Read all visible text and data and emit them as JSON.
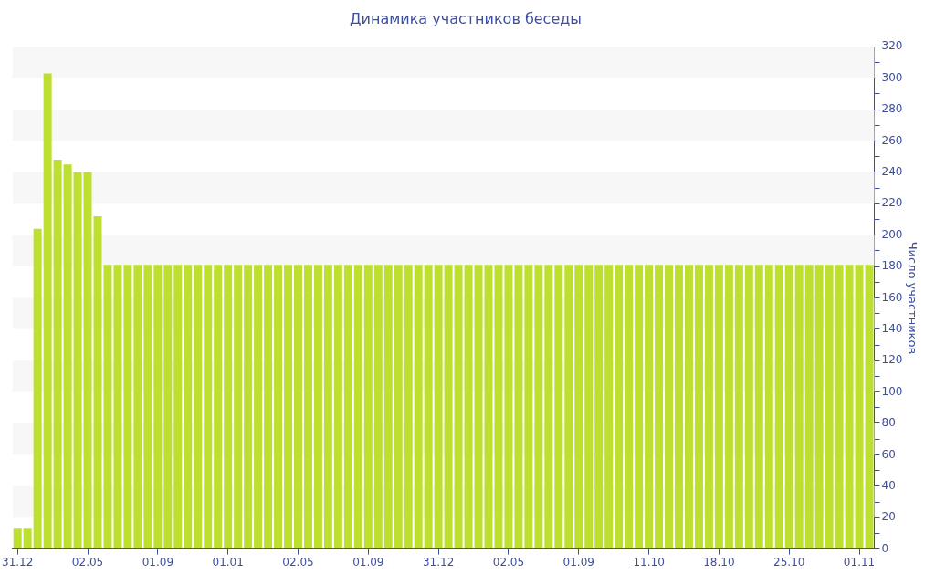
{
  "chart_data": {
    "type": "bar",
    "title": "Динамика участников беседы",
    "ylabel": "Число участников",
    "categories": [
      "31.12",
      null,
      null,
      null,
      null,
      null,
      null,
      "02.05",
      null,
      null,
      null,
      null,
      null,
      null,
      "01.09",
      null,
      null,
      null,
      null,
      null,
      null,
      "01.01",
      null,
      null,
      null,
      null,
      null,
      null,
      "02.05",
      null,
      null,
      null,
      null,
      null,
      null,
      "01.09",
      null,
      null,
      null,
      null,
      null,
      null,
      "31.12",
      null,
      null,
      null,
      null,
      null,
      null,
      "02.05",
      null,
      null,
      null,
      null,
      null,
      null,
      "01.09",
      null,
      null,
      null,
      null,
      null,
      null,
      "11.10",
      null,
      null,
      null,
      null,
      null,
      null,
      "18.10",
      null,
      null,
      null,
      null,
      null,
      null,
      "25.10",
      null,
      null,
      null,
      null,
      null,
      null,
      "01.11",
      null
    ],
    "values": [
      13,
      13,
      204,
      303,
      248,
      245,
      240,
      240,
      212,
      181,
      181,
      181,
      181,
      181,
      181,
      181,
      181,
      181,
      181,
      181,
      181,
      181,
      181,
      181,
      181,
      181,
      181,
      181,
      181,
      181,
      181,
      181,
      181,
      181,
      181,
      181,
      181,
      181,
      181,
      181,
      181,
      181,
      181,
      181,
      181,
      181,
      181,
      181,
      181,
      181,
      181,
      181,
      181,
      181,
      181,
      181,
      181,
      181,
      181,
      181,
      181,
      181,
      181,
      181,
      181,
      181,
      181,
      181,
      181,
      181,
      181,
      181,
      181,
      181,
      181,
      181,
      181,
      181,
      181,
      181,
      181,
      181,
      181,
      181,
      181,
      181
    ],
    "color": "#bde030",
    "ylim": [
      0,
      320
    ],
    "yticks": [
      0,
      {
        "value": 10,
        "label": null
      },
      20,
      {
        "value": 30,
        "label": null
      },
      40,
      {
        "value": 50,
        "label": null
      },
      60,
      {
        "value": 70,
        "label": null
      },
      80,
      {
        "value": 90,
        "label": null
      },
      100,
      {
        "value": 110,
        "label": null
      },
      120,
      {
        "value": 130,
        "label": null
      },
      140,
      {
        "value": 150,
        "label": null
      },
      160,
      {
        "value": 170,
        "label": null
      },
      180,
      {
        "value": 190,
        "label": null
      },
      200,
      {
        "value": 210,
        "label": null
      },
      220,
      {
        "value": 230,
        "label": null
      },
      240,
      {
        "value": 250,
        "label": null
      },
      260,
      {
        "value": 270,
        "label": null
      },
      280,
      {
        "value": 290,
        "label": null
      },
      300,
      {
        "value": 310,
        "label": null
      },
      320
    ],
    "bands": [
      {
        "axis": "y",
        "from": 20,
        "to": 40,
        "color": "#f7f7f7"
      },
      {
        "axis": "y",
        "from": 60,
        "to": 80,
        "color": "#f7f7f7"
      },
      {
        "axis": "y",
        "from": 100,
        "to": 120,
        "color": "#f7f7f7"
      },
      {
        "axis": "y",
        "from": 140,
        "to": 160,
        "color": "#f7f7f7"
      },
      {
        "axis": "y",
        "from": 180,
        "to": 200,
        "color": "#f7f7f7"
      },
      {
        "axis": "y",
        "from": 220,
        "to": 240,
        "color": "#f7f7f7"
      },
      {
        "axis": "y",
        "from": 260,
        "to": 280,
        "color": "#f7f7f7"
      },
      {
        "axis": "y",
        "from": 300,
        "to": 320,
        "color": "#f7f7f7"
      }
    ]
  }
}
